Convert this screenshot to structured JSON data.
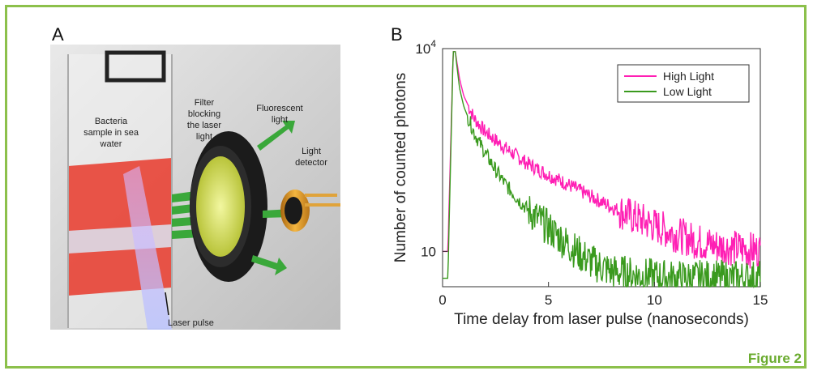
{
  "figure": {
    "caption": "Figure 2",
    "accent_color": "#8cc04b",
    "caption_color": "#6aab2e"
  },
  "panel_a": {
    "label": "A",
    "annotations": {
      "sample_line1": "Bacteria",
      "sample_line2": "sample in sea",
      "sample_line3": "water",
      "filter_line1": "Filter",
      "filter_line2": "blocking",
      "filter_line3": "the laser",
      "filter_line4": "light",
      "fluor_line1": "Fluorescent",
      "fluor_line2": "light",
      "detector_line1": "Light",
      "detector_line2": "detector",
      "laser": "Laser pulse"
    }
  },
  "panel_b": {
    "label": "B"
  },
  "chart_data": {
    "type": "line",
    "xlabel": "Time delay from laser pulse (nanoseconds)",
    "ylabel": "Number of counted photons",
    "xlim": [
      0,
      15
    ],
    "ylim": [
      3,
      10000
    ],
    "yscale": "log",
    "xticks": [
      "0",
      "5",
      "10",
      "15"
    ],
    "yticks": [
      {
        "base": "10",
        "exp": "4"
      },
      {
        "base": "10",
        "exp": ""
      }
    ],
    "legend_position": "top-right",
    "series": [
      {
        "name": "High Light",
        "color": "#ff1fb4",
        "x": [
          0.0,
          0.25,
          0.5,
          0.6,
          0.8,
          1.0,
          1.5,
          2.0,
          3.0,
          4.0,
          5.0,
          6.0,
          7.0,
          8.0,
          9.0,
          10.0,
          11.0,
          12.0,
          13.0,
          14.0,
          15.0
        ],
        "y": [
          10,
          10,
          9000,
          9000,
          3600,
          2000,
          920,
          590,
          330,
          200,
          135,
          95,
          65,
          45,
          32,
          24,
          18,
          14,
          12,
          11,
          10
        ]
      },
      {
        "name": "Low Light",
        "color": "#3a9a1e",
        "x": [
          0.0,
          0.25,
          0.5,
          0.6,
          0.8,
          1.0,
          1.5,
          2.0,
          2.5,
          3.0,
          3.5,
          4.0,
          5.0,
          6.0,
          6.5,
          7.0,
          8.0,
          9.0,
          10.0,
          11.0,
          12.0,
          13.0,
          14.0,
          15.0
        ],
        "y": [
          4,
          4,
          9000,
          9000,
          2600,
          1400,
          560,
          290,
          160,
          95,
          62,
          42,
          22,
          12,
          9,
          7,
          5,
          4.5,
          4.2,
          4,
          4,
          4,
          4,
          4
        ]
      }
    ]
  }
}
